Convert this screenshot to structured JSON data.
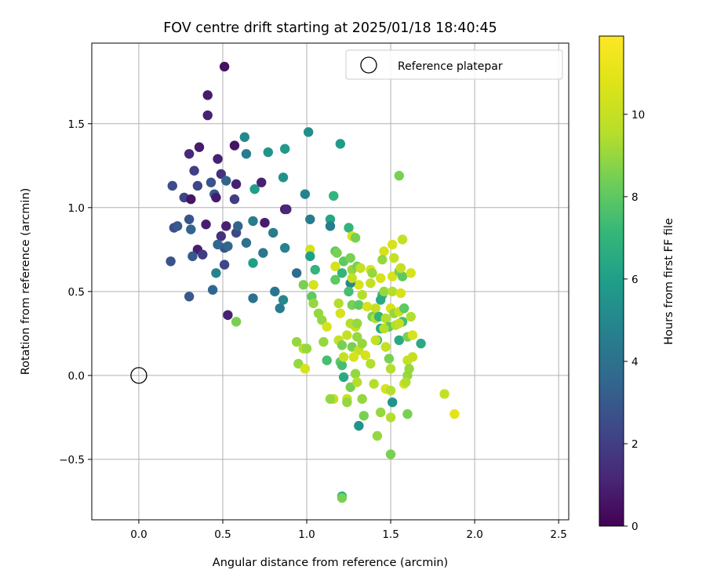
{
  "chart_data": {
    "type": "scatter",
    "title": "FOV centre drift starting at 2025/01/18 18:40:45",
    "xlabel": "Angular distance from reference (arcmin)",
    "ylabel": "Rotation from reference (arcmin)",
    "xlim": [
      -0.28,
      2.56
    ],
    "ylim": [
      -0.86,
      1.98
    ],
    "xticks": [
      0.0,
      0.5,
      1.0,
      1.5,
      2.0,
      2.5
    ],
    "xtick_labels": [
      "0.0",
      "0.5",
      "1.0",
      "1.5",
      "2.0",
      "2.5"
    ],
    "yticks": [
      -0.5,
      0.0,
      0.5,
      1.0,
      1.5
    ],
    "ytick_labels": [
      "−0.5",
      "0.0",
      "0.5",
      "1.0",
      "1.5"
    ],
    "grid": true,
    "legend": {
      "location": "upper right",
      "entries": [
        "Reference platepar"
      ]
    },
    "colorbar": {
      "label": "Hours from first FF file",
      "colormap": "viridis",
      "range": [
        0,
        11.9
      ],
      "ticks": [
        0,
        2,
        4,
        6,
        8,
        10
      ],
      "tick_labels": [
        "0",
        "2",
        "4",
        "6",
        "8",
        "10"
      ]
    },
    "reference_point": {
      "x": 0.0,
      "y": 0.0,
      "label": "Reference platepar"
    },
    "points": [
      [
        0.51,
        1.84,
        0.5
      ],
      [
        0.41,
        1.67,
        0.8
      ],
      [
        0.41,
        1.55,
        1.0
      ],
      [
        0.57,
        1.37,
        0.6
      ],
      [
        0.36,
        1.36,
        0.8
      ],
      [
        0.3,
        1.32,
        1.2
      ],
      [
        0.47,
        1.29,
        1.0
      ],
      [
        0.49,
        1.2,
        1.5
      ],
      [
        0.33,
        1.22,
        2.0
      ],
      [
        0.2,
        1.13,
        2.5
      ],
      [
        0.27,
        1.06,
        2.2
      ],
      [
        0.31,
        1.05,
        0.6
      ],
      [
        0.35,
        1.13,
        2.3
      ],
      [
        0.43,
        1.15,
        2.8
      ],
      [
        0.45,
        1.08,
        3.0
      ],
      [
        0.58,
        1.14,
        1.0
      ],
      [
        0.57,
        1.05,
        2.0
      ],
      [
        0.52,
        1.16,
        3.4
      ],
      [
        0.46,
        1.06,
        0.8
      ],
      [
        0.3,
        0.93,
        2.8
      ],
      [
        0.4,
        0.9,
        0.9
      ],
      [
        0.21,
        0.88,
        2.5
      ],
      [
        0.23,
        0.89,
        3.0
      ],
      [
        0.31,
        0.87,
        3.4
      ],
      [
        0.52,
        0.89,
        1.0
      ],
      [
        0.49,
        0.83,
        1.5
      ],
      [
        0.58,
        0.85,
        2.3
      ],
      [
        0.59,
        0.89,
        3.4
      ],
      [
        0.35,
        0.75,
        0.9
      ],
      [
        0.38,
        0.72,
        2.0
      ],
      [
        0.32,
        0.71,
        3.0
      ],
      [
        0.19,
        0.68,
        2.8
      ],
      [
        0.51,
        0.76,
        2.8
      ],
      [
        0.53,
        0.77,
        3.5
      ],
      [
        0.64,
        0.79,
        4.0
      ],
      [
        0.51,
        0.66,
        2.3
      ],
      [
        0.47,
        0.78,
        3.5
      ],
      [
        0.3,
        0.47,
        3.0
      ],
      [
        0.44,
        0.51,
        3.5
      ],
      [
        0.46,
        0.61,
        4.8
      ],
      [
        0.53,
        0.36,
        1.0
      ],
      [
        0.58,
        0.32,
        8.5
      ],
      [
        0.63,
        1.42,
        5.0
      ],
      [
        0.64,
        1.32,
        4.5
      ],
      [
        0.77,
        1.33,
        5.5
      ],
      [
        0.87,
        1.35,
        5.8
      ],
      [
        0.69,
        1.11,
        6.0
      ],
      [
        0.73,
        1.15,
        1.0
      ],
      [
        0.86,
        1.18,
        5.5
      ],
      [
        0.87,
        0.99,
        0.8
      ],
      [
        0.88,
        0.99,
        1.2
      ],
      [
        0.68,
        0.92,
        4.5
      ],
      [
        0.75,
        0.91,
        0.9
      ],
      [
        0.8,
        0.85,
        4.5
      ],
      [
        0.74,
        0.73,
        4.2
      ],
      [
        0.68,
        0.67,
        6.0
      ],
      [
        0.87,
        0.76,
        4.8
      ],
      [
        0.68,
        0.46,
        4.0
      ],
      [
        0.81,
        0.5,
        4.2
      ],
      [
        0.86,
        0.45,
        5.0
      ],
      [
        0.84,
        0.4,
        4.5
      ],
      [
        0.94,
        0.61,
        3.8
      ],
      [
        0.99,
        1.08,
        4.8
      ],
      [
        1.01,
        1.45,
        5.3
      ],
      [
        1.2,
        1.38,
        5.8
      ],
      [
        1.02,
        0.93,
        4.5
      ],
      [
        1.16,
        1.07,
        7.0
      ],
      [
        1.14,
        0.93,
        6.3
      ],
      [
        1.14,
        0.89,
        4.5
      ],
      [
        1.02,
        0.75,
        10.5
      ],
      [
        1.02,
        0.71,
        6.0
      ],
      [
        1.05,
        0.63,
        7.0
      ],
      [
        0.98,
        0.54,
        8.5
      ],
      [
        1.04,
        0.54,
        10.5
      ],
      [
        1.03,
        0.47,
        8.0
      ],
      [
        1.04,
        0.43,
        9.0
      ],
      [
        1.07,
        0.37,
        9.0
      ],
      [
        1.09,
        0.33,
        9.0
      ],
      [
        1.12,
        0.29,
        10.5
      ],
      [
        1.1,
        0.2,
        9.0
      ],
      [
        1.12,
        0.09,
        7.5
      ],
      [
        0.94,
        0.2,
        9.0
      ],
      [
        0.98,
        0.16,
        9.5
      ],
      [
        1.0,
        0.16,
        9.0
      ],
      [
        0.95,
        0.07,
        9.0
      ],
      [
        0.99,
        0.04,
        10.5
      ],
      [
        1.17,
        0.74,
        8.0
      ],
      [
        1.18,
        0.73,
        8.5
      ],
      [
        1.17,
        0.65,
        10.5
      ],
      [
        1.17,
        0.57,
        8.0
      ],
      [
        1.21,
        0.61,
        7.0
      ],
      [
        1.22,
        0.68,
        8.0
      ],
      [
        1.19,
        0.43,
        9.5
      ],
      [
        1.2,
        0.37,
        10.5
      ],
      [
        1.19,
        0.21,
        10.0
      ],
      [
        1.21,
        0.18,
        8.5
      ],
      [
        1.2,
        0.08,
        8.0
      ],
      [
        1.21,
        0.06,
        7.5
      ],
      [
        1.22,
        0.11,
        10.0
      ],
      [
        1.16,
        -0.14,
        10.0
      ],
      [
        1.14,
        -0.14,
        9.0
      ],
      [
        1.22,
        -0.01,
        6.5
      ],
      [
        1.24,
        -0.14,
        10.0
      ],
      [
        1.24,
        -0.16,
        9.0
      ],
      [
        1.21,
        -0.72,
        6.5
      ],
      [
        1.21,
        -0.73,
        8.5
      ],
      [
        1.25,
        0.88,
        7.0
      ],
      [
        1.27,
        0.83,
        10.5
      ],
      [
        1.29,
        0.82,
        8.5
      ],
      [
        1.26,
        0.7,
        8.5
      ],
      [
        1.27,
        0.63,
        9.0
      ],
      [
        1.3,
        0.65,
        8.5
      ],
      [
        1.32,
        0.64,
        10.0
      ],
      [
        1.31,
        0.54,
        10.5
      ],
      [
        1.26,
        0.55,
        5.0
      ],
      [
        1.25,
        0.5,
        7.5
      ],
      [
        1.27,
        0.58,
        10.0
      ],
      [
        1.33,
        0.48,
        9.5
      ],
      [
        1.27,
        0.42,
        8.5
      ],
      [
        1.31,
        0.42,
        8.0
      ],
      [
        1.29,
        0.29,
        10.0
      ],
      [
        1.26,
        0.31,
        9.5
      ],
      [
        1.3,
        0.31,
        9.0
      ],
      [
        1.24,
        0.24,
        10.0
      ],
      [
        1.27,
        0.17,
        8.5
      ],
      [
        1.3,
        0.23,
        9.0
      ],
      [
        1.31,
        0.15,
        10.0
      ],
      [
        1.33,
        0.19,
        9.0
      ],
      [
        1.28,
        0.11,
        10.5
      ],
      [
        1.29,
        0.01,
        9.0
      ],
      [
        1.26,
        -0.07,
        8.5
      ],
      [
        1.3,
        -0.04,
        9.5
      ],
      [
        1.33,
        -0.14,
        9.0
      ],
      [
        1.34,
        -0.24,
        8.5
      ],
      [
        1.31,
        -0.3,
        5.5
      ],
      [
        1.38,
        0.63,
        10.5
      ],
      [
        1.39,
        0.61,
        9.0
      ],
      [
        1.38,
        0.55,
        10.0
      ],
      [
        1.36,
        0.41,
        10.5
      ],
      [
        1.41,
        0.4,
        10.0
      ],
      [
        1.39,
        0.35,
        8.5
      ],
      [
        1.41,
        0.34,
        9.5
      ],
      [
        1.43,
        0.35,
        7.0
      ],
      [
        1.44,
        0.28,
        6.5
      ],
      [
        1.42,
        0.21,
        7.5
      ],
      [
        1.41,
        0.21,
        10.0
      ],
      [
        1.38,
        0.07,
        9.5
      ],
      [
        1.35,
        0.12,
        10.5
      ],
      [
        1.4,
        -0.05,
        9.5
      ],
      [
        1.42,
        -0.36,
        9.0
      ],
      [
        1.44,
        -0.22,
        9.0
      ],
      [
        1.46,
        0.74,
        10.5
      ],
      [
        1.45,
        0.69,
        9.0
      ],
      [
        1.44,
        0.58,
        10.5
      ],
      [
        1.45,
        0.48,
        7.0
      ],
      [
        1.44,
        0.45,
        6.5
      ],
      [
        1.46,
        0.5,
        9.0
      ],
      [
        1.47,
        0.34,
        9.5
      ],
      [
        1.49,
        0.29,
        8.0
      ],
      [
        1.46,
        0.28,
        9.5
      ],
      [
        1.47,
        0.17,
        10.0
      ],
      [
        1.49,
        0.1,
        8.5
      ],
      [
        1.5,
        0.04,
        9.5
      ],
      [
        1.47,
        -0.08,
        10.5
      ],
      [
        1.5,
        -0.09,
        9.5
      ],
      [
        1.51,
        -0.16,
        5.5
      ],
      [
        1.5,
        -0.25,
        9.5
      ],
      [
        1.5,
        -0.47,
        8.5
      ],
      [
        1.51,
        0.78,
        10.5
      ],
      [
        1.52,
        0.7,
        10.0
      ],
      [
        1.51,
        0.59,
        10.5
      ],
      [
        1.51,
        0.5,
        9.5
      ],
      [
        1.5,
        0.4,
        10.5
      ],
      [
        1.52,
        0.37,
        9.0
      ],
      [
        1.53,
        0.3,
        9.5
      ],
      [
        1.55,
        0.38,
        10.0
      ],
      [
        1.57,
        0.32,
        7.5
      ],
      [
        1.55,
        0.31,
        10.0
      ],
      [
        1.55,
        0.21,
        6.5
      ],
      [
        1.56,
        0.49,
        10.5
      ],
      [
        1.55,
        0.62,
        8.5
      ],
      [
        1.57,
        0.59,
        8.0
      ],
      [
        1.55,
        1.19,
        8.5
      ],
      [
        1.57,
        0.81,
        10.0
      ],
      [
        1.56,
        0.64,
        10.0
      ],
      [
        1.58,
        0.4,
        8.0
      ],
      [
        1.6,
        0.23,
        8.5
      ],
      [
        1.6,
        0.09,
        10.0
      ],
      [
        1.61,
        0.04,
        9.0
      ],
      [
        1.6,
        0.0,
        9.0
      ],
      [
        1.58,
        -0.05,
        10.5
      ],
      [
        1.59,
        -0.04,
        9.5
      ],
      [
        1.6,
        -0.23,
        8.5
      ],
      [
        1.62,
        0.61,
        10.5
      ],
      [
        1.62,
        0.35,
        9.5
      ],
      [
        1.63,
        0.24,
        10.5
      ],
      [
        1.63,
        0.11,
        10.0
      ],
      [
        1.68,
        0.19,
        6.5
      ],
      [
        1.82,
        -0.11,
        10.0
      ],
      [
        1.88,
        -0.23,
        11.0
      ]
    ]
  }
}
